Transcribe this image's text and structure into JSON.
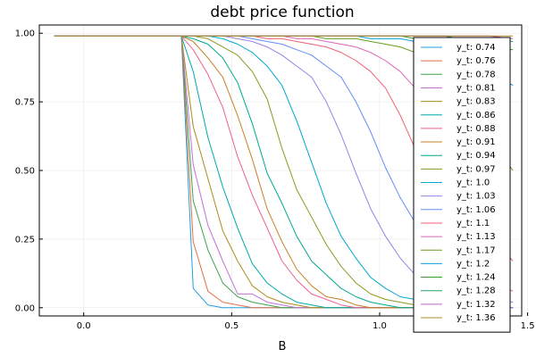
{
  "chart_data": {
    "type": "line",
    "title": "debt price function",
    "xlabel": "B",
    "ylabel": "",
    "xlim": [
      -0.15,
      1.48
    ],
    "ylim": [
      -0.03,
      1.03
    ],
    "x_ticks": [
      0.0,
      0.5,
      1.0,
      1.5
    ],
    "x_tick_labels": [
      "0.0",
      "0.5",
      "1.0",
      "1.5"
    ],
    "y_ticks": [
      0.0,
      0.25,
      0.5,
      0.75,
      1.0
    ],
    "y_tick_labels": [
      "0.00",
      "0.25",
      "0.50",
      "0.75",
      "1.00"
    ],
    "grid": true,
    "legend_position": "top-right",
    "x": [
      -0.1,
      0.3,
      0.33,
      0.37,
      0.42,
      0.47,
      0.52,
      0.57,
      0.62,
      0.67,
      0.72,
      0.77,
      0.82,
      0.87,
      0.92,
      0.97,
      1.02,
      1.07,
      1.12,
      1.17,
      1.22,
      1.27,
      1.32,
      1.37,
      1.45
    ],
    "series": [
      {
        "name": "y_t: 0.74",
        "color": "#1f9fde",
        "values": [
          0.99,
          0.99,
          0.99,
          0.07,
          0.01,
          0.0,
          0.0,
          0.0,
          0.0,
          0.0,
          0.0,
          0.0,
          0.0,
          0.0,
          0.0,
          0.0,
          0.0,
          0.0,
          0.0,
          0.0,
          0.0,
          0.0,
          0.0,
          0.0,
          0.0
        ]
      },
      {
        "name": "y_t: 0.76",
        "color": "#e26f46",
        "values": [
          0.99,
          0.99,
          0.99,
          0.24,
          0.06,
          0.02,
          0.01,
          0.0,
          0.0,
          0.0,
          0.0,
          0.0,
          0.0,
          0.0,
          0.0,
          0.0,
          0.0,
          0.0,
          0.0,
          0.0,
          0.0,
          0.0,
          0.0,
          0.0,
          0.0
        ]
      },
      {
        "name": "y_t: 0.78",
        "color": "#3da44d",
        "values": [
          0.99,
          0.99,
          0.99,
          0.39,
          0.21,
          0.09,
          0.04,
          0.02,
          0.01,
          0.0,
          0.0,
          0.0,
          0.0,
          0.0,
          0.0,
          0.0,
          0.0,
          0.0,
          0.0,
          0.0,
          0.0,
          0.0,
          0.0,
          0.0,
          0.0
        ]
      },
      {
        "name": "y_t: 0.81",
        "color": "#c271d2",
        "values": [
          0.99,
          0.99,
          0.99,
          0.52,
          0.3,
          0.17,
          0.05,
          0.05,
          0.02,
          0.01,
          0.0,
          0.0,
          0.0,
          0.0,
          0.0,
          0.0,
          0.0,
          0.0,
          0.0,
          0.0,
          0.0,
          0.0,
          0.0,
          0.0,
          0.0
        ]
      },
      {
        "name": "y_t: 0.83",
        "color": "#ac8d18",
        "values": [
          0.99,
          0.99,
          0.99,
          0.66,
          0.47,
          0.28,
          0.17,
          0.08,
          0.04,
          0.02,
          0.01,
          0.0,
          0.0,
          0.0,
          0.0,
          0.0,
          0.0,
          0.0,
          0.0,
          0.0,
          0.0,
          0.0,
          0.0,
          0.0,
          0.0
        ]
      },
      {
        "name": "y_t: 0.86",
        "color": "#00a9ad",
        "values": [
          0.99,
          0.99,
          0.99,
          0.86,
          0.62,
          0.44,
          0.29,
          0.16,
          0.09,
          0.05,
          0.02,
          0.01,
          0.0,
          0.0,
          0.0,
          0.0,
          0.0,
          0.0,
          0.0,
          0.0,
          0.0,
          0.0,
          0.0,
          0.0,
          0.0
        ]
      },
      {
        "name": "y_t: 0.88",
        "color": "#ed5e93",
        "values": [
          0.99,
          0.99,
          0.99,
          0.94,
          0.85,
          0.73,
          0.55,
          0.41,
          0.29,
          0.17,
          0.1,
          0.05,
          0.03,
          0.01,
          0.0,
          0.0,
          0.0,
          0.0,
          0.0,
          0.0,
          0.0,
          0.0,
          0.0,
          0.0,
          0.0
        ]
      },
      {
        "name": "y_t: 0.91",
        "color": "#c68125",
        "values": [
          0.99,
          0.99,
          0.99,
          0.97,
          0.91,
          0.84,
          0.7,
          0.54,
          0.36,
          0.24,
          0.14,
          0.08,
          0.04,
          0.03,
          0.01,
          0.0,
          0.0,
          0.0,
          0.0,
          0.0,
          0.0,
          0.0,
          0.0,
          0.0,
          0.0
        ]
      },
      {
        "name": "y_t: 0.94",
        "color": "#00a98d",
        "values": [
          0.99,
          0.99,
          0.99,
          0.98,
          0.96,
          0.91,
          0.82,
          0.67,
          0.49,
          0.38,
          0.26,
          0.17,
          0.12,
          0.07,
          0.04,
          0.02,
          0.01,
          0.0,
          0.0,
          0.0,
          0.0,
          0.0,
          0.0,
          0.0,
          0.0
        ]
      },
      {
        "name": "y_t: 0.97",
        "color": "#8e971d",
        "values": [
          0.99,
          0.99,
          0.99,
          0.99,
          0.98,
          0.95,
          0.92,
          0.86,
          0.76,
          0.58,
          0.43,
          0.33,
          0.23,
          0.15,
          0.09,
          0.05,
          0.03,
          0.02,
          0.01,
          0.0,
          0.0,
          0.0,
          0.0,
          0.0,
          0.0
        ]
      },
      {
        "name": "y_t: 1.0",
        "color": "#00a9cd",
        "values": [
          0.99,
          0.99,
          0.99,
          0.99,
          0.99,
          0.98,
          0.96,
          0.93,
          0.88,
          0.81,
          0.68,
          0.53,
          0.38,
          0.26,
          0.18,
          0.11,
          0.07,
          0.04,
          0.03,
          0.01,
          0.0,
          0.0,
          0.0,
          0.0,
          0.0
        ]
      },
      {
        "name": "y_t: 1.03",
        "color": "#9b7fe8",
        "values": [
          0.99,
          0.99,
          0.99,
          0.99,
          0.99,
          0.99,
          0.98,
          0.97,
          0.95,
          0.92,
          0.88,
          0.84,
          0.75,
          0.63,
          0.49,
          0.36,
          0.26,
          0.18,
          0.12,
          0.07,
          0.04,
          0.02,
          0.01,
          0.0,
          0.0
        ]
      },
      {
        "name": "y_t: 1.06",
        "color": "#618df6",
        "values": [
          0.99,
          0.99,
          0.99,
          0.99,
          0.99,
          0.99,
          0.99,
          0.98,
          0.97,
          0.96,
          0.94,
          0.92,
          0.88,
          0.84,
          0.75,
          0.64,
          0.51,
          0.4,
          0.31,
          0.22,
          0.15,
          0.1,
          0.06,
          0.04,
          0.02
        ]
      },
      {
        "name": "y_t: 1.1",
        "color": "#f05f73",
        "values": [
          0.99,
          0.99,
          0.99,
          0.99,
          0.99,
          0.99,
          0.99,
          0.99,
          0.98,
          0.98,
          0.97,
          0.96,
          0.95,
          0.93,
          0.9,
          0.86,
          0.8,
          0.7,
          0.58,
          0.47,
          0.35,
          0.25,
          0.16,
          0.1,
          0.06
        ]
      },
      {
        "name": "y_t: 1.13",
        "color": "#dd64b5",
        "values": [
          0.99,
          0.99,
          0.99,
          0.99,
          0.99,
          0.99,
          0.99,
          0.99,
          0.99,
          0.99,
          0.98,
          0.98,
          0.97,
          0.96,
          0.95,
          0.93,
          0.9,
          0.86,
          0.8,
          0.71,
          0.61,
          0.5,
          0.38,
          0.27,
          0.17
        ]
      },
      {
        "name": "y_t: 1.17",
        "color": "#6b9b1e",
        "values": [
          0.99,
          0.99,
          0.99,
          0.99,
          0.99,
          0.99,
          0.99,
          0.99,
          0.99,
          0.99,
          0.99,
          0.99,
          0.98,
          0.98,
          0.98,
          0.97,
          0.96,
          0.95,
          0.93,
          0.9,
          0.86,
          0.8,
          0.72,
          0.62,
          0.5
        ]
      },
      {
        "name": "y_t: 1.2",
        "color": "#0e9fda",
        "values": [
          0.99,
          0.99,
          0.99,
          0.99,
          0.99,
          0.99,
          0.99,
          0.99,
          0.99,
          0.99,
          0.99,
          0.99,
          0.99,
          0.99,
          0.99,
          0.98,
          0.98,
          0.98,
          0.97,
          0.96,
          0.95,
          0.93,
          0.9,
          0.86,
          0.81
        ]
      },
      {
        "name": "y_t: 1.24",
        "color": "#3c9c30",
        "values": [
          0.99,
          0.99,
          0.99,
          0.99,
          0.99,
          0.99,
          0.99,
          0.99,
          0.99,
          0.99,
          0.99,
          0.99,
          0.99,
          0.99,
          0.99,
          0.99,
          0.99,
          0.99,
          0.98,
          0.98,
          0.98,
          0.97,
          0.96,
          0.95,
          0.94
        ]
      },
      {
        "name": "y_t: 1.28",
        "color": "#25a365",
        "values": [
          0.99,
          0.99,
          0.99,
          0.99,
          0.99,
          0.99,
          0.99,
          0.99,
          0.99,
          0.99,
          0.99,
          0.99,
          0.99,
          0.99,
          0.99,
          0.99,
          0.99,
          0.99,
          0.99,
          0.99,
          0.99,
          0.98,
          0.98,
          0.98,
          0.97
        ]
      },
      {
        "name": "y_t: 1.32",
        "color": "#c564c4",
        "values": [
          0.99,
          0.99,
          0.99,
          0.99,
          0.99,
          0.99,
          0.99,
          0.99,
          0.99,
          0.99,
          0.99,
          0.99,
          0.99,
          0.99,
          0.99,
          0.99,
          0.99,
          0.99,
          0.99,
          0.99,
          0.99,
          0.99,
          0.99,
          0.99,
          0.98
        ]
      },
      {
        "name": "y_t: 1.36",
        "color": "#b58e2a",
        "values": [
          0.99,
          0.99,
          0.99,
          0.99,
          0.99,
          0.99,
          0.99,
          0.99,
          0.99,
          0.99,
          0.99,
          0.99,
          0.99,
          0.99,
          0.99,
          0.99,
          0.99,
          0.99,
          0.99,
          0.99,
          0.99,
          0.99,
          0.99,
          0.99,
          0.99
        ]
      }
    ]
  }
}
